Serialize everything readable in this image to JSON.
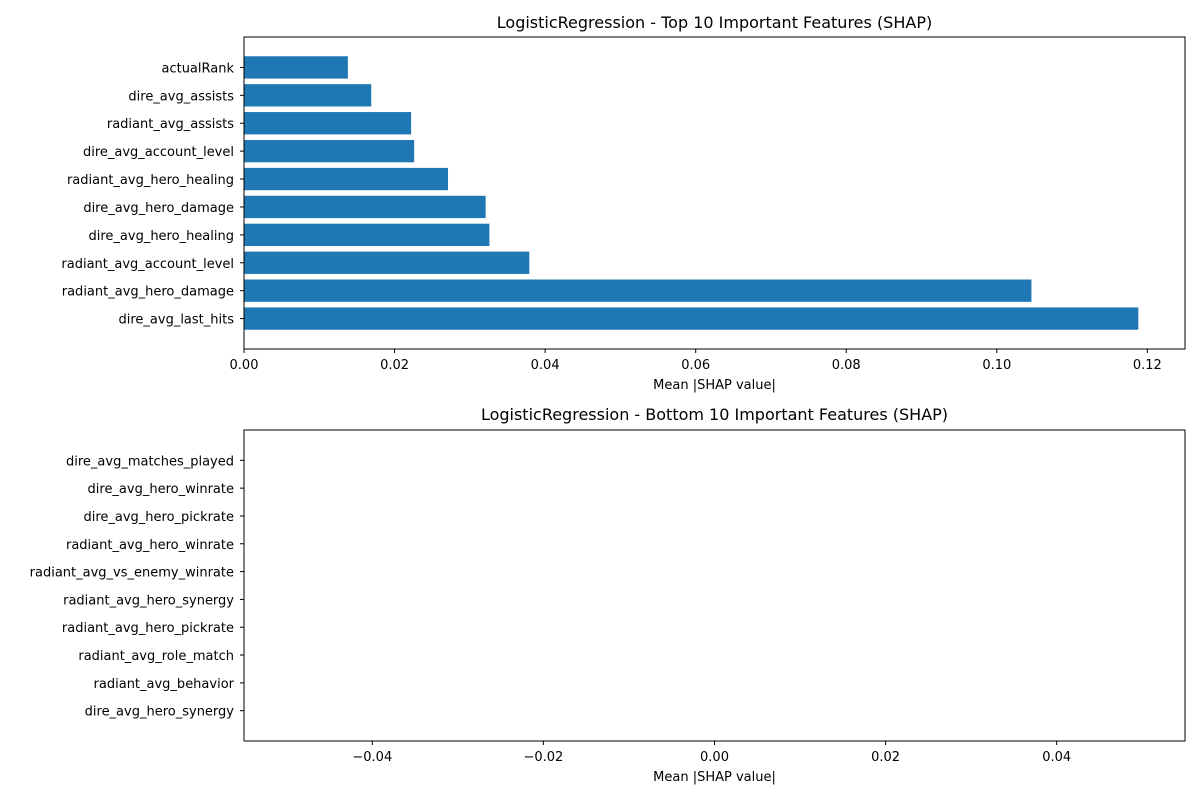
{
  "chart_data": [
    {
      "type": "bar",
      "orientation": "horizontal",
      "title": "LogisticRegression - Top 10 Important Features (SHAP)",
      "xlabel": "Mean |SHAP value|",
      "ylabel": "",
      "categories": [
        "dire_avg_last_hits",
        "radiant_avg_hero_damage",
        "radiant_avg_account_level",
        "dire_avg_hero_healing",
        "dire_avg_hero_damage",
        "radiant_avg_hero_healing",
        "dire_avg_account_level",
        "radiant_avg_assists",
        "dire_avg_assists",
        "actualRank"
      ],
      "values": [
        0.1188,
        0.1046,
        0.0379,
        0.0326,
        0.0321,
        0.0271,
        0.0226,
        0.0222,
        0.0169,
        0.0138
      ],
      "xlim": [
        0,
        0.125
      ],
      "xticks": [
        0.0,
        0.02,
        0.04,
        0.06,
        0.08,
        0.1,
        0.12
      ],
      "xtick_labels": [
        "0.00",
        "0.02",
        "0.04",
        "0.06",
        "0.08",
        "0.10",
        "0.12"
      ],
      "bar_color": "#1f77b4",
      "grid": false
    },
    {
      "type": "bar",
      "orientation": "horizontal",
      "title": "LogisticRegression - Bottom 10 Important Features (SHAP)",
      "xlabel": "Mean |SHAP value|",
      "ylabel": "",
      "categories": [
        "dire_avg_hero_synergy",
        "radiant_avg_behavior",
        "radiant_avg_role_match",
        "radiant_avg_hero_pickrate",
        "radiant_avg_hero_synergy",
        "radiant_avg_vs_enemy_winrate",
        "radiant_avg_hero_winrate",
        "dire_avg_hero_pickrate",
        "dire_avg_hero_winrate",
        "dire_avg_matches_played"
      ],
      "values": [
        0,
        0,
        0,
        0,
        0,
        0,
        0,
        0,
        0,
        0
      ],
      "xlim": [
        -0.055,
        0.055
      ],
      "xticks": [
        -0.04,
        -0.02,
        0.0,
        0.02,
        0.04
      ],
      "xtick_labels": [
        "−0.04",
        "−0.02",
        "0.00",
        "0.02",
        "0.04"
      ],
      "bar_color": "#1f77b4",
      "grid": false
    }
  ]
}
